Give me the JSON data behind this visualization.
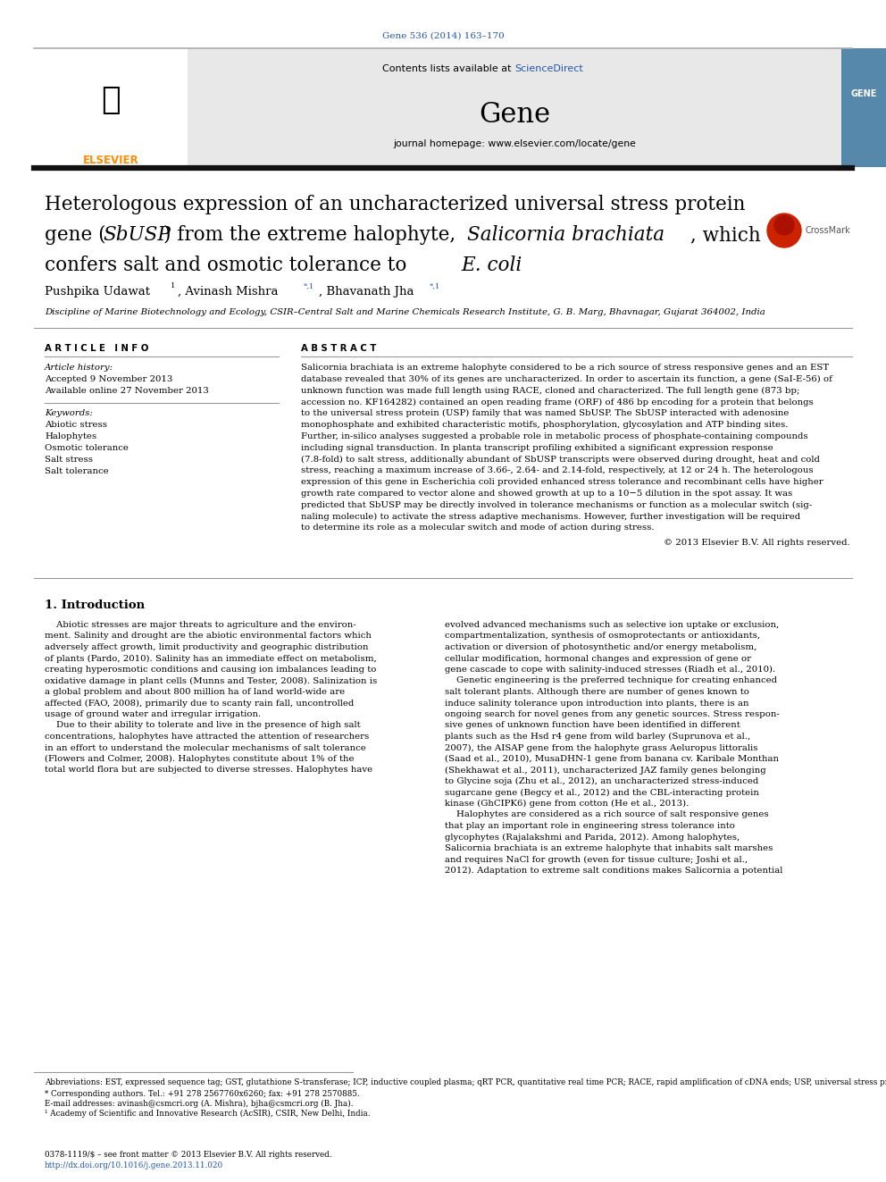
{
  "journal_ref": "Gene 536 (2014) 163–170",
  "journal_ref_color": "#2255aa",
  "sciencedirect_color": "#2255aa",
  "journal_homepage": "journal homepage: www.elsevier.com/locate/gene",
  "header_bg": "#e8e8e8",
  "affiliation": "Discipline of Marine Biotechnology and Ecology, CSIR–Central Salt and Marine Chemicals Research Institute, G. B. Marg, Bhavnagar, Gujarat 364002, India",
  "article_info_header": "A R T I C L E   I N F O",
  "abstract_header": "A B S T R A C T",
  "article_history_label": "Article history:",
  "accepted_date": "Accepted 9 November 2013",
  "available_online": "Available online 27 November 2013",
  "keywords_label": "Keywords:",
  "keywords": [
    "Abiotic stress",
    "Halophytes",
    "Osmotic tolerance",
    "Salt stress",
    "Salt tolerance"
  ],
  "copyright": "© 2013 Elsevier B.V. All rights reserved.",
  "intro_header": "1. Introduction",
  "footnote_abbrev": "Abbreviations: EST, expressed sequence tag; GST, glutathione S-transferase; ICP, inductive coupled plasma; qRT PCR, quantitative real time PCR; RACE, rapid amplification of cDNA ends; USP, universal stress protein.",
  "footnote_corresponding": "* Corresponding authors. Tel.: +91 278 2567760x6260; fax: +91 278 2570885.",
  "footnote_email": "E-mail addresses: avinash@csmcri.org (A. Mishra), bjha@csmcri.org (B. Jha).",
  "footnote_1": "¹ Academy of Scientific and Innovative Research (AcSIR), CSIR, New Delhi, India.",
  "issn_line": "0378-1119/$ – see front matter © 2013 Elsevier B.V. All rights reserved.",
  "doi_line": "http://dx.doi.org/10.1016/j.gene.2013.11.020",
  "doi_color": "#2255aa",
  "bg_color": "#ffffff",
  "link_color": "#2255aa",
  "thin_line_color": "#888888",
  "abstract_lines": [
    "Salicornia brachiata is an extreme halophyte considered to be a rich source of stress responsive genes and an EST",
    "database revealed that 30% of its genes are uncharacterized. In order to ascertain its function, a gene (SaI-E-56) of",
    "unknown function was made full length using RACE, cloned and characterized. The full length gene (873 bp;",
    "accession no. KF164282) contained an open reading frame (ORF) of 486 bp encoding for a protein that belongs",
    "to the universal stress protein (USP) family that was named SbUSP. The SbUSP interacted with adenosine",
    "monophosphate and exhibited characteristic motifs, phosphorylation, glycosylation and ATP binding sites.",
    "Further, in-silico analyses suggested a probable role in metabolic process of phosphate-containing compounds",
    "including signal transduction. In planta transcript profiling exhibited a significant expression response",
    "(7.8-fold) to salt stress, additionally abundant of SbUSP transcripts were observed during drought, heat and cold",
    "stress, reaching a maximum increase of 3.66-, 2.64- and 2.14-fold, respectively, at 12 or 24 h. The heterologous",
    "expression of this gene in Escherichia coli provided enhanced stress tolerance and recombinant cells have higher",
    "growth rate compared to vector alone and showed growth at up to a 10−5 dilution in the spot assay. It was",
    "predicted that SbUSP may be directly involved in tolerance mechanisms or function as a molecular switch (sig-",
    "naling molecule) to activate the stress adaptive mechanisms. However, further investigation will be required",
    "to determine its role as a molecular switch and mode of action during stress."
  ],
  "left_intro_lines": [
    "    Abiotic stresses are major threats to agriculture and the environ-",
    "ment. Salinity and drought are the abiotic environmental factors which",
    "adversely affect growth, limit productivity and geographic distribution",
    "of plants (Pardo, 2010). Salinity has an immediate effect on metabolism,",
    "creating hyperosmotic conditions and causing ion imbalances leading to",
    "oxidative damage in plant cells (Munns and Tester, 2008). Salinization is",
    "a global problem and about 800 million ha of land world-wide are",
    "affected (FAO, 2008), primarily due to scanty rain fall, uncontrolled",
    "usage of ground water and irregular irrigation.",
    "    Due to their ability to tolerate and live in the presence of high salt",
    "concentrations, halophytes have attracted the attention of researchers",
    "in an effort to understand the molecular mechanisms of salt tolerance",
    "(Flowers and Colmer, 2008). Halophytes constitute about 1% of the",
    "total world flora but are subjected to diverse stresses. Halophytes have"
  ],
  "right_intro_lines": [
    "evolved advanced mechanisms such as selective ion uptake or exclusion,",
    "compartmentalization, synthesis of osmoprotectants or antioxidants,",
    "activation or diversion of photosynthetic and/or energy metabolism,",
    "cellular modification, hormonal changes and expression of gene or",
    "gene cascade to cope with salinity-induced stresses (Riadh et al., 2010).",
    "    Genetic engineering is the preferred technique for creating enhanced",
    "salt tolerant plants. Although there are number of genes known to",
    "induce salinity tolerance upon introduction into plants, there is an",
    "ongoing search for novel genes from any genetic sources. Stress respon-",
    "sive genes of unknown function have been identified in different",
    "plants such as the Hsd r4 gene from wild barley (Suprunova et al.,",
    "2007), the AISAP gene from the halophyte grass Aeluropus littoralis",
    "(Saad et al., 2010), MusaDHN-1 gene from banana cv. Karibale Monthan",
    "(Shekhawat et al., 2011), uncharacterized JAZ family genes belonging",
    "to Glycine soja (Zhu et al., 2012), an uncharacterized stress-induced",
    "sugarcane gene (Begcy et al., 2012) and the CBL-interacting protein",
    "kinase (GhCIPK6) gene from cotton (He et al., 2013).",
    "    Halophytes are considered as a rich source of salt responsive genes",
    "that play an important role in engineering stress tolerance into",
    "glycophytes (Rajalakshmi and Parida, 2012). Among halophytes,",
    "Salicornia brachiata is an extreme halophyte that inhabits salt marshes",
    "and requires NaCl for growth (even for tissue culture; Joshi et al.,",
    "2012). Adaptation to extreme salt conditions makes Salicornia a potential"
  ]
}
